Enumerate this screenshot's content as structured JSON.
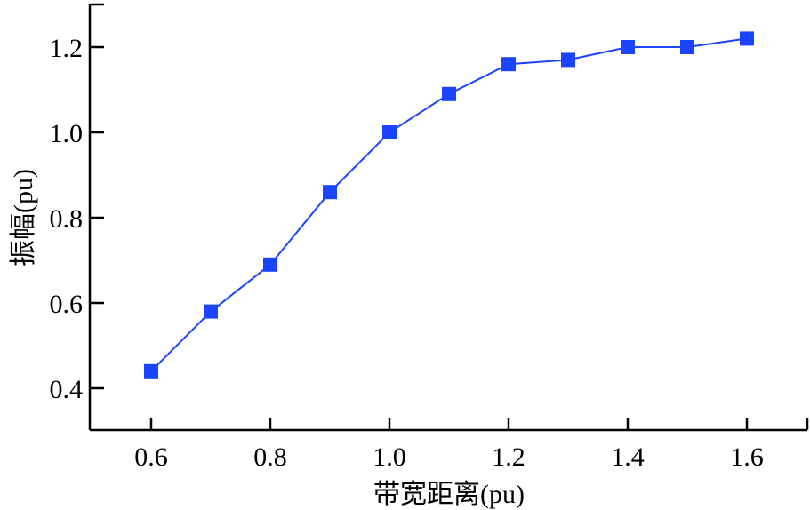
{
  "chart_data": {
    "type": "line",
    "title": "",
    "xlabel": "带宽距离(pu)",
    "ylabel": "振幅(pu)",
    "x": [
      0.6,
      0.7,
      0.8,
      0.9,
      1.0,
      1.1,
      1.2,
      1.3,
      1.4,
      1.5,
      1.6
    ],
    "series": [
      {
        "name": "振幅",
        "values": [
          0.44,
          0.58,
          0.69,
          0.86,
          1.0,
          1.09,
          1.16,
          1.17,
          1.2,
          1.2,
          1.22
        ],
        "color": "#1a44ff",
        "marker": "square"
      }
    ],
    "xticks": [
      "0.6",
      "0.8",
      "1.0",
      "1.2",
      "1.4",
      "1.6"
    ],
    "yticks": [
      "0.4",
      "0.6",
      "0.8",
      "1.0",
      "1.2"
    ],
    "xlim": [
      0.5,
      1.7
    ],
    "ylim": [
      0.3,
      1.3
    ],
    "grid": false,
    "legend": null
  }
}
